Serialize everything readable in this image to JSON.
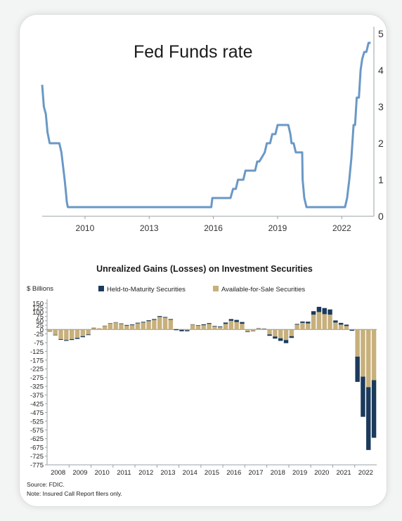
{
  "chart_data": [
    {
      "type": "line",
      "title": "Fed Funds rate",
      "xlabel": "",
      "ylabel": "",
      "xlim": [
        2008.0,
        2023.5
      ],
      "ylim": [
        0,
        5
      ],
      "y_axis_side": "right",
      "grid": false,
      "color": "#6a98c6",
      "x_ticks": [
        "2010",
        "2013",
        "2016",
        "2019",
        "2022"
      ],
      "y_ticks": [
        "0",
        "1",
        "2",
        "3",
        "4",
        "5"
      ],
      "series": [
        {
          "x": [
            2008.0,
            2008.08,
            2008.17,
            2008.25,
            2008.35,
            2008.8,
            2008.9,
            2008.95,
            2009.05,
            2009.12,
            2009.15,
            2009.2,
            2015.9,
            2015.95,
            2016.8,
            2016.92,
            2017.05,
            2017.15,
            2017.4,
            2017.5,
            2017.6,
            2017.95,
            2018.05,
            2018.15,
            2018.4,
            2018.5,
            2018.65,
            2018.75,
            2018.9,
            2019.0,
            2019.1,
            2019.25,
            2019.5,
            2019.6,
            2019.65,
            2019.75,
            2019.85,
            2020.0,
            2020.15,
            2020.17,
            2020.25,
            2020.35,
            2022.15,
            2022.25,
            2022.35,
            2022.45,
            2022.55,
            2022.62,
            2022.7,
            2022.8,
            2022.88,
            2022.95,
            2023.05,
            2023.15,
            2023.25,
            2023.35
          ],
          "y": [
            3.6,
            3.0,
            2.8,
            2.3,
            2.0,
            2.0,
            1.75,
            1.5,
            1.0,
            0.6,
            0.4,
            0.25,
            0.25,
            0.5,
            0.5,
            0.75,
            0.75,
            1.0,
            1.0,
            1.25,
            1.25,
            1.25,
            1.5,
            1.5,
            1.75,
            2.0,
            2.0,
            2.25,
            2.25,
            2.5,
            2.5,
            2.5,
            2.5,
            2.25,
            2.0,
            2.0,
            1.75,
            1.75,
            1.75,
            1.0,
            0.5,
            0.25,
            0.25,
            0.5,
            1.0,
            1.6,
            2.5,
            2.5,
            3.25,
            3.25,
            4.0,
            4.3,
            4.5,
            4.5,
            4.75,
            4.75
          ]
        }
      ]
    },
    {
      "type": "bar",
      "stacked": true,
      "title": "Unrealized Gains (Losses) on Investment Securities",
      "ylabel": "$ Billions",
      "ylim": [
        -750,
        150
      ],
      "y_ticks": [
        "150",
        "125",
        "100",
        "75",
        "50",
        "25",
        "0",
        "-25",
        "-75",
        "-125",
        "-175",
        "-225",
        "-275",
        "-325",
        "-375",
        "-425",
        "-475",
        "-525",
        "-575",
        "-625",
        "-675",
        "-725",
        "-775"
      ],
      "y_tick_values": [
        150,
        125,
        100,
        75,
        50,
        25,
        0,
        -25,
        -75,
        -125,
        -175,
        -225,
        -275,
        -325,
        -375,
        -425,
        -475,
        -525,
        -575,
        -625,
        -675,
        -725,
        -775
      ],
      "x_ticks": [
        "2008",
        "2009",
        "2010",
        "2011",
        "2012",
        "2013",
        "2014",
        "2015",
        "2016",
        "2017",
        "2018",
        "2019",
        "2020",
        "2021",
        "2022"
      ],
      "legend_position": "top",
      "categories": [
        "2008Q1",
        "2008Q2",
        "2008Q3",
        "2008Q4",
        "2009Q1",
        "2009Q2",
        "2009Q3",
        "2009Q4",
        "2010Q1",
        "2010Q2",
        "2010Q3",
        "2010Q4",
        "2011Q1",
        "2011Q2",
        "2011Q3",
        "2011Q4",
        "2012Q1",
        "2012Q2",
        "2012Q3",
        "2012Q4",
        "2013Q1",
        "2013Q2",
        "2013Q3",
        "2013Q4",
        "2014Q1",
        "2014Q2",
        "2014Q3",
        "2014Q4",
        "2015Q1",
        "2015Q2",
        "2015Q3",
        "2015Q4",
        "2016Q1",
        "2016Q2",
        "2016Q3",
        "2016Q4",
        "2017Q1",
        "2017Q2",
        "2017Q3",
        "2017Q4",
        "2018Q1",
        "2018Q2",
        "2018Q3",
        "2018Q4",
        "2019Q1",
        "2019Q2",
        "2019Q3",
        "2019Q4",
        "2020Q1",
        "2020Q2",
        "2020Q3",
        "2020Q4",
        "2021Q1",
        "2021Q2",
        "2021Q3",
        "2021Q4",
        "2022Q1",
        "2022Q2",
        "2022Q3",
        "2022Q4"
      ],
      "series": [
        {
          "name": "Held-to-Maturity Securities",
          "color": "#1b3a5c",
          "values": [
            -2,
            -3,
            -4,
            -5,
            -5,
            -6,
            -6,
            -4,
            -2,
            0,
            2,
            2,
            2,
            3,
            4,
            4,
            4,
            4,
            5,
            5,
            5,
            4,
            -4,
            -6,
            -8,
            -6,
            2,
            3,
            5,
            5,
            3,
            4,
            8,
            10,
            12,
            10,
            -3,
            -2,
            2,
            2,
            -8,
            -12,
            -15,
            -18,
            -10,
            4,
            8,
            10,
            20,
            30,
            35,
            30,
            12,
            10,
            8,
            -5,
            -145,
            -230,
            -360,
            -330
          ]
        },
        {
          "name": "Available-for-Sale Securities",
          "color": "#c7b07c",
          "values": [
            -10,
            -30,
            -55,
            -60,
            -55,
            -48,
            -38,
            -28,
            10,
            8,
            20,
            35,
            40,
            32,
            22,
            25,
            35,
            40,
            48,
            55,
            72,
            68,
            60,
            2,
            -2,
            -4,
            28,
            22,
            25,
            32,
            18,
            14,
            32,
            50,
            43,
            33,
            -12,
            -8,
            6,
            4,
            -28,
            -40,
            -50,
            -60,
            -38,
            28,
            38,
            35,
            85,
            100,
            88,
            85,
            40,
            28,
            20,
            -2,
            -155,
            -270,
            -330,
            -290
          ]
        }
      ],
      "x_tick_labels_years": [
        "2008",
        "2009",
        "2010",
        "2011",
        "2012",
        "2013",
        "2014",
        "2015",
        "2016",
        "2017",
        "2018",
        "2019",
        "2020",
        "2021",
        "2022"
      ]
    }
  ],
  "legend": {
    "htm_label": "Held-to-Maturity Securities",
    "afs_label": "Available-for-Sale Securities"
  },
  "source": "Source: FDIC.",
  "note": "Note: Insured Call Report filers only."
}
